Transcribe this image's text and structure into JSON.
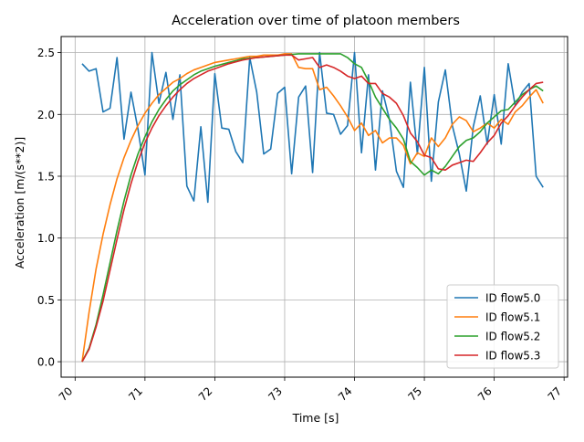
{
  "chart_data": {
    "type": "line",
    "title": "Acceleration over time of platoon members",
    "xlabel": "Time [s]",
    "ylabel": "Acceleration [m/(s**2)]",
    "xlim": [
      69.8,
      77.05
    ],
    "ylim": [
      -0.125,
      2.63
    ],
    "xticks": [
      70,
      71,
      72,
      73,
      74,
      75,
      76,
      77
    ],
    "xtick_labels": [
      "70",
      "71",
      "72",
      "73",
      "74",
      "75",
      "76",
      "77"
    ],
    "yticks": [
      0.0,
      0.5,
      1.0,
      1.5,
      2.0,
      2.5
    ],
    "ytick_labels": [
      "0.0",
      "0.5",
      "1.0",
      "1.5",
      "2.0",
      "2.5"
    ],
    "xtick_rotation": 45,
    "grid": true,
    "legend_position": "lower-right",
    "colors": [
      "#1f77b4",
      "#ff7f0e",
      "#2ca02c",
      "#d62728"
    ],
    "series": [
      {
        "name": "ID flow5.0",
        "color": "#1f77b4",
        "points": [
          [
            70.1,
            2.41
          ],
          [
            70.2,
            2.35
          ],
          [
            70.3,
            2.37
          ],
          [
            70.4,
            2.02
          ],
          [
            70.5,
            2.05
          ],
          [
            70.6,
            2.46
          ],
          [
            70.7,
            1.8
          ],
          [
            70.8,
            2.18
          ],
          [
            70.9,
            1.88
          ],
          [
            71.0,
            1.51
          ],
          [
            71.1,
            2.5
          ],
          [
            71.2,
            2.09
          ],
          [
            71.3,
            2.34
          ],
          [
            71.4,
            1.96
          ],
          [
            71.5,
            2.32
          ],
          [
            71.6,
            1.42
          ],
          [
            71.7,
            1.3
          ],
          [
            71.8,
            1.9
          ],
          [
            71.9,
            1.29
          ],
          [
            72.0,
            2.33
          ],
          [
            72.1,
            1.89
          ],
          [
            72.2,
            1.88
          ],
          [
            72.3,
            1.7
          ],
          [
            72.4,
            1.61
          ],
          [
            72.5,
            2.46
          ],
          [
            72.6,
            2.18
          ],
          [
            72.7,
            1.68
          ],
          [
            72.8,
            1.72
          ],
          [
            72.9,
            2.17
          ],
          [
            73.0,
            2.22
          ],
          [
            73.1,
            1.52
          ],
          [
            73.2,
            2.14
          ],
          [
            73.3,
            2.23
          ],
          [
            73.4,
            1.53
          ],
          [
            73.5,
            2.5
          ],
          [
            73.6,
            2.01
          ],
          [
            73.7,
            2.0
          ],
          [
            73.8,
            1.84
          ],
          [
            73.9,
            1.91
          ],
          [
            74.0,
            2.5
          ],
          [
            74.1,
            1.69
          ],
          [
            74.2,
            2.32
          ],
          [
            74.3,
            1.55
          ],
          [
            74.4,
            2.19
          ],
          [
            74.5,
            1.96
          ],
          [
            74.6,
            1.54
          ],
          [
            74.7,
            1.41
          ],
          [
            74.8,
            2.26
          ],
          [
            74.9,
            1.68
          ],
          [
            75.0,
            2.38
          ],
          [
            75.1,
            1.46
          ],
          [
            75.2,
            2.1
          ],
          [
            75.3,
            2.36
          ],
          [
            75.4,
            1.91
          ],
          [
            75.5,
            1.68
          ],
          [
            75.6,
            1.38
          ],
          [
            75.7,
            1.9
          ],
          [
            75.8,
            2.15
          ],
          [
            75.9,
            1.76
          ],
          [
            76.0,
            2.16
          ],
          [
            76.1,
            1.76
          ],
          [
            76.2,
            2.41
          ],
          [
            76.3,
            2.07
          ],
          [
            76.4,
            2.18
          ],
          [
            76.5,
            2.25
          ],
          [
            76.6,
            1.5
          ],
          [
            76.7,
            1.41
          ]
        ]
      },
      {
        "name": "ID flow5.1",
        "color": "#ff7f0e",
        "points": [
          [
            70.1,
            0.0
          ],
          [
            70.2,
            0.4
          ],
          [
            70.3,
            0.75
          ],
          [
            70.4,
            1.03
          ],
          [
            70.5,
            1.27
          ],
          [
            70.6,
            1.48
          ],
          [
            70.7,
            1.65
          ],
          [
            70.8,
            1.79
          ],
          [
            70.9,
            1.91
          ],
          [
            71.0,
            2.01
          ],
          [
            71.1,
            2.09
          ],
          [
            71.2,
            2.16
          ],
          [
            71.3,
            2.21
          ],
          [
            71.4,
            2.26
          ],
          [
            71.5,
            2.29
          ],
          [
            71.6,
            2.33
          ],
          [
            71.7,
            2.36
          ],
          [
            71.8,
            2.38
          ],
          [
            71.9,
            2.4
          ],
          [
            72.0,
            2.42
          ],
          [
            72.1,
            2.43
          ],
          [
            72.2,
            2.44
          ],
          [
            72.3,
            2.45
          ],
          [
            72.4,
            2.46
          ],
          [
            72.5,
            2.47
          ],
          [
            72.6,
            2.47
          ],
          [
            72.7,
            2.48
          ],
          [
            72.8,
            2.48
          ],
          [
            72.9,
            2.48
          ],
          [
            73.0,
            2.49
          ],
          [
            73.1,
            2.49
          ],
          [
            73.2,
            2.38
          ],
          [
            73.3,
            2.37
          ],
          [
            73.4,
            2.37
          ],
          [
            73.5,
            2.2
          ],
          [
            73.6,
            2.22
          ],
          [
            73.7,
            2.15
          ],
          [
            73.8,
            2.07
          ],
          [
            73.9,
            1.98
          ],
          [
            74.0,
            1.87
          ],
          [
            74.1,
            1.93
          ],
          [
            74.2,
            1.83
          ],
          [
            74.3,
            1.87
          ],
          [
            74.4,
            1.77
          ],
          [
            74.5,
            1.81
          ],
          [
            74.6,
            1.81
          ],
          [
            74.7,
            1.75
          ],
          [
            74.8,
            1.6
          ],
          [
            74.9,
            1.69
          ],
          [
            75.0,
            1.66
          ],
          [
            75.1,
            1.81
          ],
          [
            75.2,
            1.74
          ],
          [
            75.3,
            1.81
          ],
          [
            75.4,
            1.92
          ],
          [
            75.5,
            1.98
          ],
          [
            75.6,
            1.95
          ],
          [
            75.7,
            1.86
          ],
          [
            75.8,
            1.89
          ],
          [
            75.9,
            1.93
          ],
          [
            76.0,
            1.89
          ],
          [
            76.1,
            1.96
          ],
          [
            76.2,
            1.92
          ],
          [
            76.3,
            2.02
          ],
          [
            76.4,
            2.07
          ],
          [
            76.5,
            2.14
          ],
          [
            76.6,
            2.2
          ],
          [
            76.7,
            2.09
          ]
        ]
      },
      {
        "name": "ID flow5.2",
        "color": "#2ca02c",
        "points": [
          [
            70.1,
            0.0
          ],
          [
            70.2,
            0.11
          ],
          [
            70.3,
            0.3
          ],
          [
            70.4,
            0.54
          ],
          [
            70.5,
            0.8
          ],
          [
            70.6,
            1.06
          ],
          [
            70.7,
            1.3
          ],
          [
            70.8,
            1.51
          ],
          [
            70.9,
            1.68
          ],
          [
            71.0,
            1.82
          ],
          [
            71.1,
            1.94
          ],
          [
            71.2,
            2.04
          ],
          [
            71.3,
            2.12
          ],
          [
            71.4,
            2.19
          ],
          [
            71.5,
            2.24
          ],
          [
            71.6,
            2.28
          ],
          [
            71.7,
            2.32
          ],
          [
            71.8,
            2.35
          ],
          [
            71.9,
            2.37
          ],
          [
            72.0,
            2.39
          ],
          [
            72.2,
            2.42
          ],
          [
            72.4,
            2.45
          ],
          [
            72.6,
            2.46
          ],
          [
            72.8,
            2.47
          ],
          [
            73.0,
            2.48
          ],
          [
            73.2,
            2.49
          ],
          [
            73.4,
            2.49
          ],
          [
            73.6,
            2.49
          ],
          [
            73.8,
            2.49
          ],
          [
            73.9,
            2.46
          ],
          [
            74.0,
            2.41
          ],
          [
            74.1,
            2.38
          ],
          [
            74.2,
            2.27
          ],
          [
            74.3,
            2.14
          ],
          [
            74.4,
            2.05
          ],
          [
            74.5,
            1.96
          ],
          [
            74.6,
            1.89
          ],
          [
            74.7,
            1.8
          ],
          [
            74.8,
            1.62
          ],
          [
            74.9,
            1.57
          ],
          [
            75.0,
            1.51
          ],
          [
            75.1,
            1.55
          ],
          [
            75.2,
            1.52
          ],
          [
            75.3,
            1.58
          ],
          [
            75.4,
            1.66
          ],
          [
            75.5,
            1.74
          ],
          [
            75.6,
            1.79
          ],
          [
            75.7,
            1.81
          ],
          [
            75.8,
            1.86
          ],
          [
            75.9,
            1.93
          ],
          [
            76.0,
            1.98
          ],
          [
            76.1,
            2.03
          ],
          [
            76.2,
            2.04
          ],
          [
            76.3,
            2.1
          ],
          [
            76.4,
            2.16
          ],
          [
            76.5,
            2.2
          ],
          [
            76.6,
            2.23
          ],
          [
            76.7,
            2.19
          ]
        ]
      },
      {
        "name": "ID flow5.3",
        "color": "#d62728",
        "points": [
          [
            70.1,
            0.0
          ],
          [
            70.2,
            0.1
          ],
          [
            70.3,
            0.28
          ],
          [
            70.4,
            0.49
          ],
          [
            70.5,
            0.74
          ],
          [
            70.6,
            0.99
          ],
          [
            70.7,
            1.23
          ],
          [
            70.8,
            1.44
          ],
          [
            70.9,
            1.62
          ],
          [
            71.0,
            1.77
          ],
          [
            71.1,
            1.89
          ],
          [
            71.2,
            1.99
          ],
          [
            71.3,
            2.07
          ],
          [
            71.4,
            2.14
          ],
          [
            71.5,
            2.2
          ],
          [
            71.6,
            2.25
          ],
          [
            71.7,
            2.29
          ],
          [
            71.8,
            2.32
          ],
          [
            71.9,
            2.35
          ],
          [
            72.0,
            2.37
          ],
          [
            72.2,
            2.41
          ],
          [
            72.4,
            2.44
          ],
          [
            72.6,
            2.46
          ],
          [
            72.8,
            2.47
          ],
          [
            73.0,
            2.48
          ],
          [
            73.1,
            2.48
          ],
          [
            73.2,
            2.44
          ],
          [
            73.3,
            2.45
          ],
          [
            73.4,
            2.46
          ],
          [
            73.5,
            2.38
          ],
          [
            73.6,
            2.4
          ],
          [
            73.7,
            2.38
          ],
          [
            73.8,
            2.35
          ],
          [
            73.9,
            2.31
          ],
          [
            74.0,
            2.29
          ],
          [
            74.1,
            2.31
          ],
          [
            74.2,
            2.25
          ],
          [
            74.3,
            2.25
          ],
          [
            74.4,
            2.17
          ],
          [
            74.5,
            2.14
          ],
          [
            74.6,
            2.09
          ],
          [
            74.7,
            1.99
          ],
          [
            74.8,
            1.85
          ],
          [
            74.9,
            1.78
          ],
          [
            75.0,
            1.67
          ],
          [
            75.1,
            1.65
          ],
          [
            75.2,
            1.56
          ],
          [
            75.3,
            1.55
          ],
          [
            75.4,
            1.59
          ],
          [
            75.5,
            1.61
          ],
          [
            75.6,
            1.63
          ],
          [
            75.7,
            1.62
          ],
          [
            75.8,
            1.69
          ],
          [
            75.9,
            1.77
          ],
          [
            76.0,
            1.83
          ],
          [
            76.1,
            1.93
          ],
          [
            76.2,
            1.99
          ],
          [
            76.3,
            2.07
          ],
          [
            76.4,
            2.14
          ],
          [
            76.5,
            2.2
          ],
          [
            76.6,
            2.25
          ],
          [
            76.7,
            2.26
          ]
        ]
      }
    ]
  }
}
